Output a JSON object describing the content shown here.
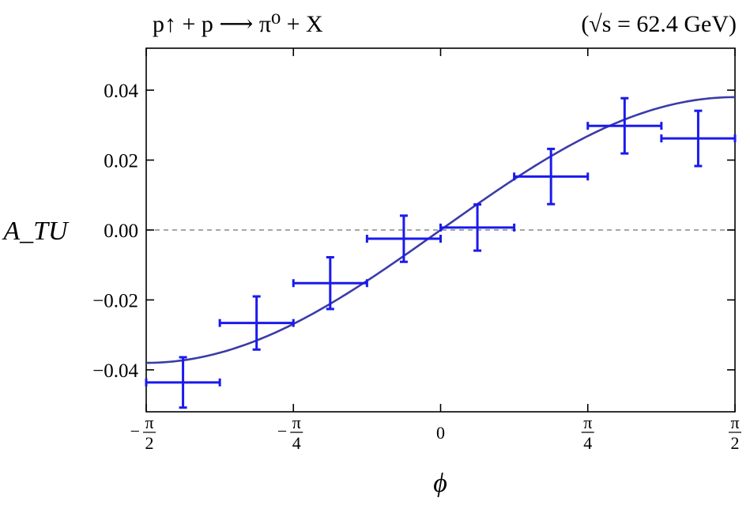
{
  "chart_data": {
    "type": "scatter",
    "title": "p↑ + p ⟶ π⁰ + X",
    "subtitle": "(√s = 62.4 GeV)",
    "xlabel": "ϕ",
    "ylabel": "A_TU",
    "xlim": [
      -1.5708,
      1.5708
    ],
    "ylim": [
      -0.052,
      0.052
    ],
    "x_ticks": [
      {
        "value": -1.5708,
        "label": "−π/2"
      },
      {
        "value": -0.7854,
        "label": "−π/4"
      },
      {
        "value": 0,
        "label": "0"
      },
      {
        "value": 0.7854,
        "label": "π/4"
      },
      {
        "value": 1.5708,
        "label": "π/2"
      }
    ],
    "y_ticks": [
      {
        "value": 0.04,
        "label": "0.04"
      },
      {
        "value": 0.02,
        "label": "0.02"
      },
      {
        "value": 0.0,
        "label": "0.00"
      },
      {
        "value": -0.02,
        "label": "−0.02"
      },
      {
        "value": -0.04,
        "label": "−0.04"
      }
    ],
    "reference_line_y": 0,
    "grid": false,
    "series": [
      {
        "type": "errorbar",
        "color": "#1a1aee",
        "points": [
          {
            "x": -1.3744,
            "x_lo": -1.5708,
            "x_hi": -1.1781,
            "y": -0.0436,
            "y_err": 0.0072
          },
          {
            "x": -0.9818,
            "x_lo": -1.1781,
            "x_hi": -0.7854,
            "y": -0.0266,
            "y_err": 0.0076
          },
          {
            "x": -0.589,
            "x_lo": -0.7854,
            "x_hi": -0.3927,
            "y": -0.0152,
            "y_err": 0.0074
          },
          {
            "x": -0.1964,
            "x_lo": -0.3927,
            "x_hi": 0.0,
            "y": -0.0025,
            "y_err": 0.0066
          },
          {
            "x": 0.1964,
            "x_lo": 0.0,
            "x_hi": 0.3927,
            "y": 0.0007,
            "y_err": 0.0066
          },
          {
            "x": 0.589,
            "x_lo": 0.3927,
            "x_hi": 0.7854,
            "y": 0.0153,
            "y_err": 0.0079
          },
          {
            "x": 0.9818,
            "x_lo": 0.7854,
            "x_hi": 1.1781,
            "y": 0.0298,
            "y_err": 0.0079
          },
          {
            "x": 1.3744,
            "x_lo": 1.1781,
            "x_hi": 1.5708,
            "y": 0.0262,
            "y_err": 0.0079
          }
        ]
      },
      {
        "type": "line",
        "color": "#3b3ba8",
        "function": "0.038*sin(phi)"
      }
    ]
  }
}
